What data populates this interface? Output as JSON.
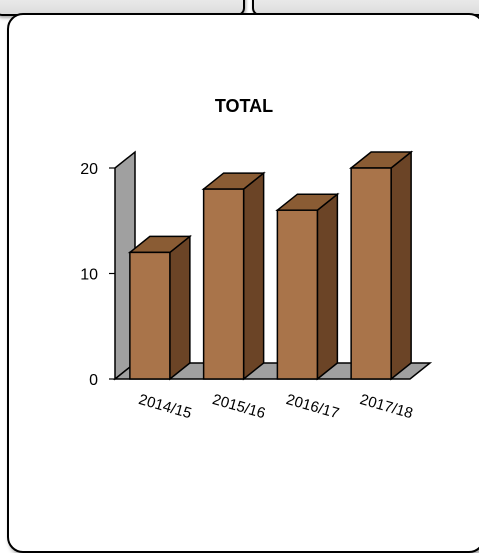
{
  "chart_data": {
    "type": "bar",
    "title": "TOTAL",
    "categories": [
      "2014/15",
      "2015/16",
      "2016/17",
      "2017/18"
    ],
    "values": [
      12,
      18,
      16,
      20
    ],
    "ylim": [
      0,
      20
    ],
    "yticks": [
      0,
      10,
      20
    ],
    "xlabel": "",
    "ylabel": "",
    "grid": false,
    "legend": "none",
    "three_d": true,
    "colors": {
      "bar_front": "#a9744a",
      "bar_top": "#8a5c34",
      "bar_side": "#6b4426",
      "wall": "#a0a0a0"
    }
  }
}
